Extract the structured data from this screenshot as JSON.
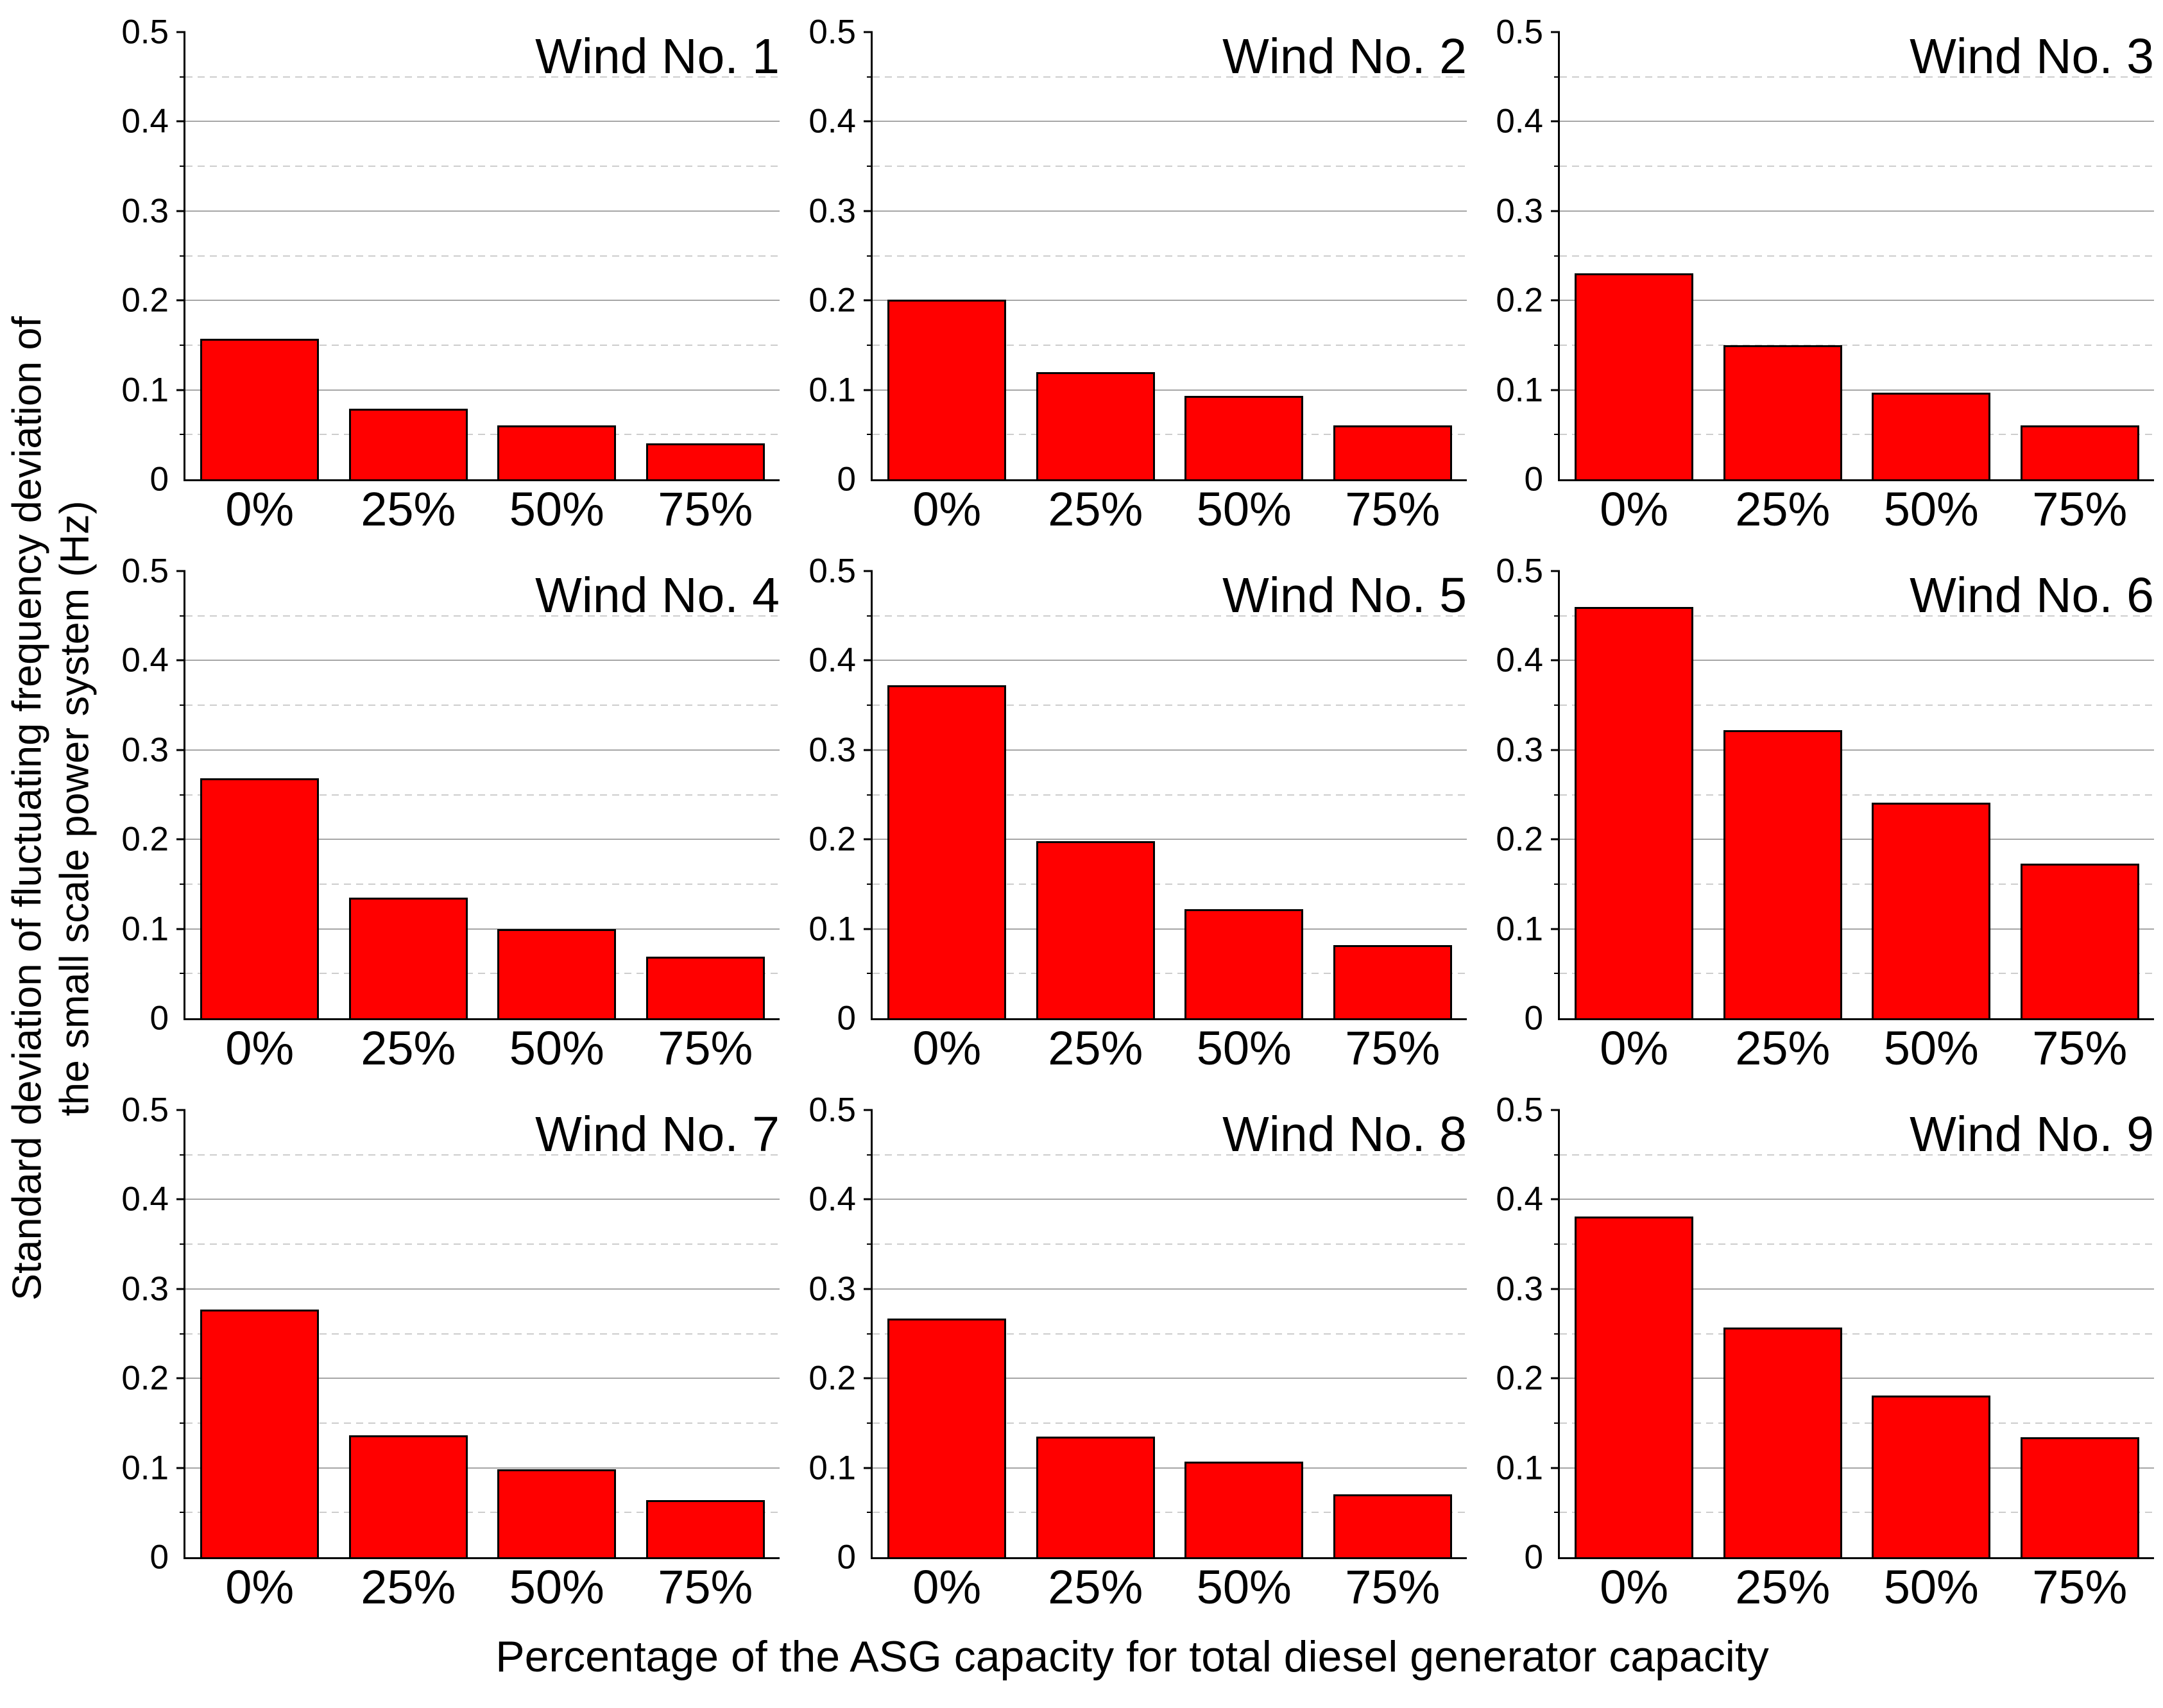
{
  "chart_data": {
    "type": "bar",
    "categories": [
      "0%",
      "25%",
      "50%",
      "75%"
    ],
    "ylim": [
      0,
      0.5
    ],
    "yticks": [
      0,
      0.1,
      0.2,
      0.3,
      0.4,
      0.5
    ],
    "ytick_labels": [
      "0",
      "0.1",
      "0.2",
      "0.3",
      "0.4",
      "0.5"
    ],
    "minor_yticks": [
      0.05,
      0.15,
      0.25,
      0.35,
      0.45
    ],
    "grid": "horizontal major solid, minor dashed",
    "legend": "none",
    "xlabel": "Percentage of the ASG capacity for total diesel generator capacity",
    "ylabel": "Standard deviation of fluctuating frequency deviation of the small scale power system (Hz)",
    "ylabel_line1": "Standard deviation of fluctuating frequency deviation of",
    "ylabel_line2": "the small scale power system (Hz)",
    "bar_color": "#ff0000",
    "bar_edge_color": "#000000",
    "subplots": [
      {
        "title": "Wind No. 1",
        "values": [
          0.157,
          0.079,
          0.06,
          0.04
        ]
      },
      {
        "title": "Wind No. 2",
        "values": [
          0.201,
          0.12,
          0.093,
          0.06
        ]
      },
      {
        "title": "Wind No. 3",
        "values": [
          0.23,
          0.15,
          0.097,
          0.06
        ]
      },
      {
        "title": "Wind No. 4",
        "values": [
          0.268,
          0.135,
          0.1,
          0.069
        ]
      },
      {
        "title": "Wind No. 5",
        "values": [
          0.372,
          0.198,
          0.122,
          0.082
        ]
      },
      {
        "title": "Wind No. 6",
        "values": [
          0.46,
          0.322,
          0.241,
          0.173
        ]
      },
      {
        "title": "Wind No. 7",
        "values": [
          0.277,
          0.136,
          0.098,
          0.064
        ]
      },
      {
        "title": "Wind No. 8",
        "values": [
          0.267,
          0.135,
          0.107,
          0.07
        ]
      },
      {
        "title": "Wind No. 9",
        "values": [
          0.381,
          0.257,
          0.181,
          0.134
        ]
      }
    ]
  }
}
